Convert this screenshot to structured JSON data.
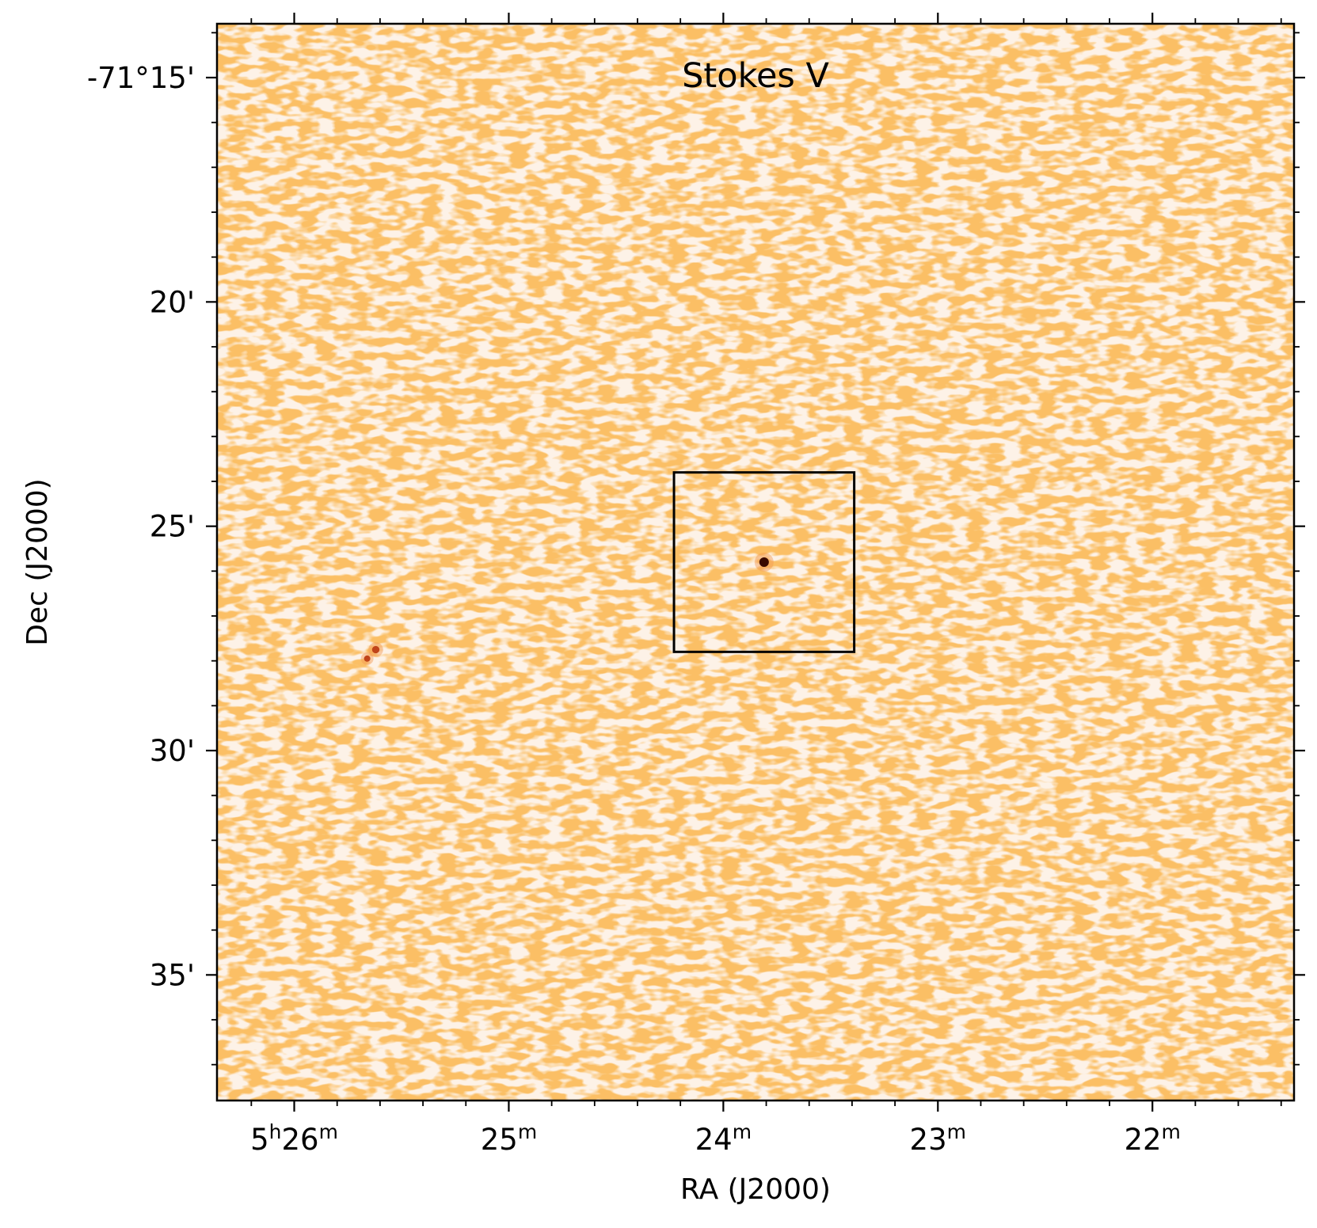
{
  "chart_data": {
    "type": "heatmap",
    "title": "Stokes V",
    "xlabel": "RA (J2000)",
    "ylabel": "Dec (J2000)",
    "colormap": "Oranges",
    "x_unit": "RA minutes (5h offset)",
    "y_unit": "Dec arcminutes (-71° offset)",
    "xlim": [
      26.36,
      21.34
    ],
    "ylim": [
      13.8,
      37.8
    ],
    "x_ticks": [
      {
        "value": 26,
        "label_main": "5",
        "label_sup1": "h",
        "label_mid": "26",
        "label_sup2": "m"
      },
      {
        "value": 25,
        "label_main": "",
        "label_sup1": "",
        "label_mid": "25",
        "label_sup2": "m"
      },
      {
        "value": 24,
        "label_main": "",
        "label_sup1": "",
        "label_mid": "24",
        "label_sup2": "m"
      },
      {
        "value": 23,
        "label_main": "",
        "label_sup1": "",
        "label_mid": "23",
        "label_sup2": "m"
      },
      {
        "value": 22,
        "label_main": "",
        "label_sup1": "",
        "label_mid": "22",
        "label_sup2": "m"
      }
    ],
    "y_ticks": [
      {
        "value": 15,
        "label": "-71°15'"
      },
      {
        "value": 20,
        "label": "20'"
      },
      {
        "value": 25,
        "label": "25'"
      },
      {
        "value": 30,
        "label": "30'"
      },
      {
        "value": 35,
        "label": "35'"
      }
    ],
    "x_minor_step": 0.2,
    "y_minor_step": 1,
    "box_region": {
      "ra_min": [
        24.23,
        23.39
      ],
      "dec_arcmin": [
        23.8,
        27.8
      ]
    },
    "sources": [
      {
        "name": "central point source",
        "ra_min": 23.81,
        "dec_arcmin": 25.8,
        "strength": 1.0
      },
      {
        "name": "source-2",
        "ra_min": 25.62,
        "dec_arcmin": 27.75,
        "strength": 0.7
      },
      {
        "name": "source-3",
        "ra_min": 25.66,
        "dec_arcmin": 27.95,
        "strength": 0.55
      }
    ],
    "colors": {
      "low": "#ffffff",
      "mid": "#f29a55",
      "high": "#3a0a00"
    }
  }
}
